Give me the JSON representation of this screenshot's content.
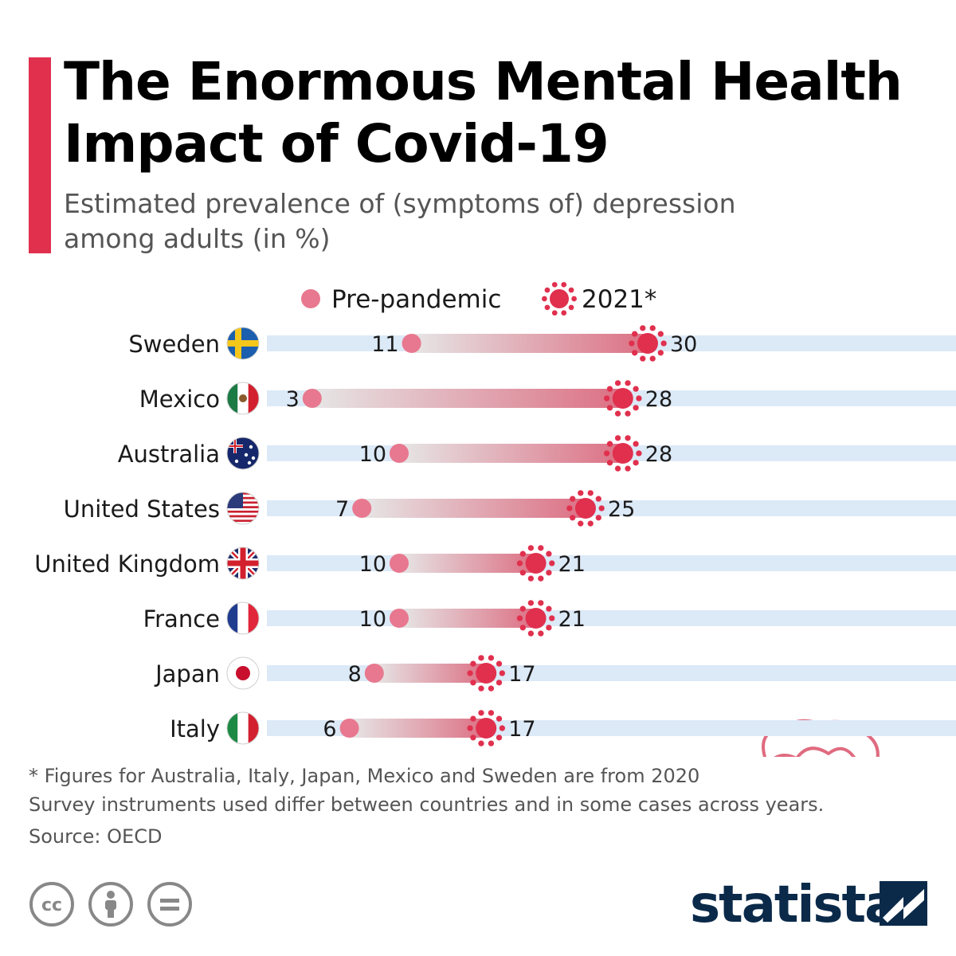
{
  "title": "The Enormous Mental Health Impact of Covid-19",
  "subtitle": "Estimated prevalence of (symptoms of) depression among adults (in %)",
  "colors": {
    "accent": "#e0304e",
    "pre_dot": "#e8788f",
    "covid": "#e0304e",
    "track": "#dce9f7",
    "brand": "#0b2a4a"
  },
  "chart_data": {
    "type": "dumbbell",
    "series": [
      {
        "name": "Pre-pandemic",
        "marker": "dot"
      },
      {
        "name": "2021*",
        "marker": "virus-icon"
      }
    ],
    "categories": [
      "Sweden",
      "Mexico",
      "Australia",
      "United States",
      "United Kingdom",
      "France",
      "Japan",
      "Italy"
    ],
    "flags": [
      "flag-sweden-icon",
      "flag-mexico-icon",
      "flag-australia-icon",
      "flag-united-states-icon",
      "flag-united-kingdom-icon",
      "flag-france-icon",
      "flag-japan-icon",
      "flag-italy-icon"
    ],
    "pre_pandemic": [
      11,
      3,
      10,
      7,
      10,
      10,
      8,
      6
    ],
    "y2021": [
      30,
      28,
      28,
      25,
      21,
      21,
      17,
      17
    ],
    "legend_position": "top",
    "grid": false,
    "decoration": "head-with-brain-and-virus-illustration"
  },
  "footnote": {
    "line1": "* Figures for Australia, Italy, Japan, Mexico and Sweden are from 2020",
    "line2": "Survey instruments used differ between countries and in some cases across years."
  },
  "source": "Source: OECD",
  "brand": "statista",
  "license_icons": [
    "cc-icon",
    "attribution-icon",
    "no-derivatives-icon"
  ]
}
